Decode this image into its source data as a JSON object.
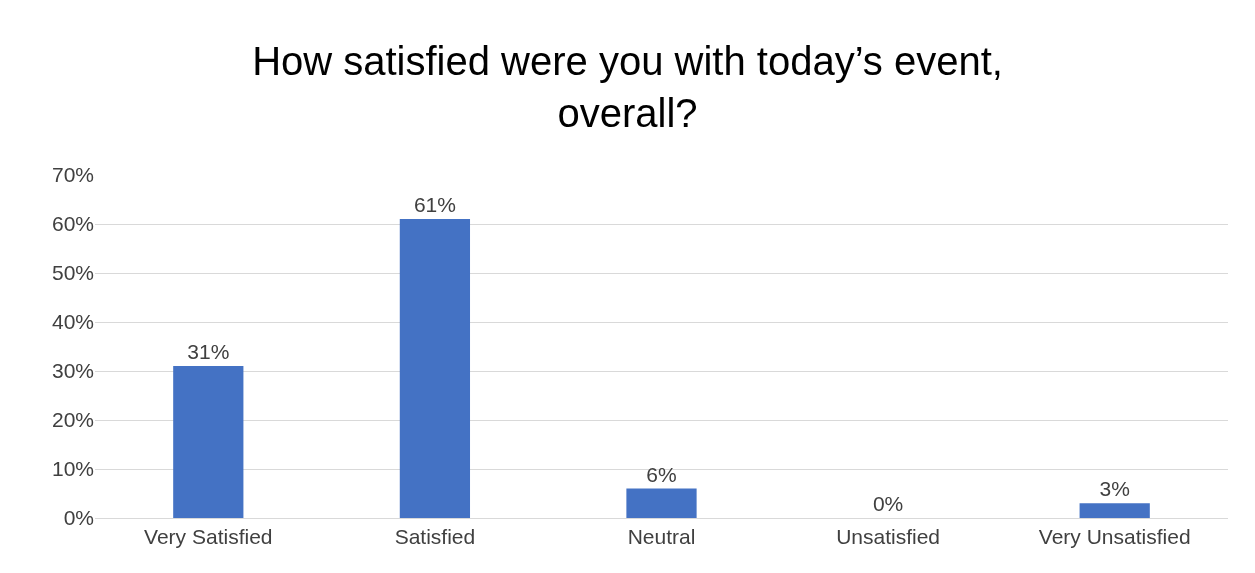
{
  "chart_data": {
    "type": "bar",
    "title": "How satisfied were you with today’s event,\noverall?",
    "categories": [
      "Very Satisfied",
      "Satisfied",
      "Neutral",
      "Unsatisfied",
      "Very Unsatisfied"
    ],
    "values": [
      31,
      61,
      6,
      0,
      3
    ],
    "value_labels": [
      "31%",
      "61%",
      "6%",
      "0%",
      "3%"
    ],
    "color": "#4472c4",
    "ylim": [
      0,
      70
    ],
    "yticks": [
      {
        "value": 0,
        "label": "0%"
      },
      {
        "value": 10,
        "label": "10%"
      },
      {
        "value": 20,
        "label": "20%"
      },
      {
        "value": 30,
        "label": "30%"
      },
      {
        "value": 40,
        "label": "40%"
      },
      {
        "value": 50,
        "label": "50%"
      },
      {
        "value": 60,
        "label": "60%"
      },
      {
        "value": 70,
        "label": "70%"
      }
    ],
    "grid": "y",
    "legend": false
  }
}
